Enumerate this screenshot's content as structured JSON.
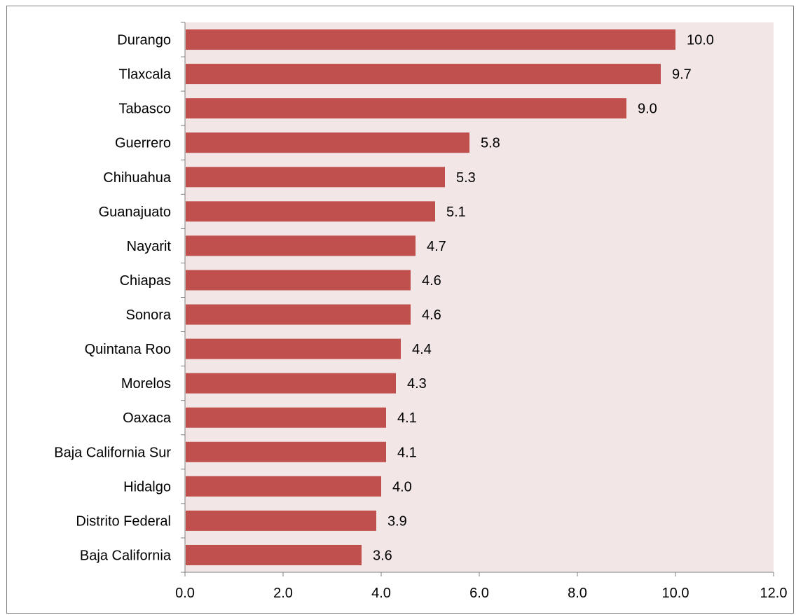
{
  "chart_data": {
    "type": "bar",
    "orientation": "horizontal",
    "title": "",
    "xlabel": "",
    "ylabel": "",
    "categories": [
      "Durango",
      "Tlaxcala",
      "Tabasco",
      "Guerrero",
      "Chihuahua",
      "Guanajuato",
      "Nayarit",
      "Chiapas",
      "Sonora",
      "Quintana Roo",
      "Morelos",
      "Oaxaca",
      "Baja California Sur",
      "Hidalgo",
      "Distrito Federal",
      "Baja California"
    ],
    "values": [
      10.0,
      9.7,
      9.0,
      5.8,
      5.3,
      5.1,
      4.7,
      4.6,
      4.6,
      4.4,
      4.3,
      4.1,
      4.1,
      4.0,
      3.9,
      3.6
    ],
    "value_labels": [
      "10.0",
      "9.7",
      "9.0",
      "5.8",
      "5.3",
      "5.1",
      "4.7",
      "4.6",
      "4.6",
      "4.4",
      "4.3",
      "4.1",
      "4.1",
      "4.0",
      "3.9",
      "3.6"
    ],
    "xlim": [
      0,
      12
    ],
    "xticks": [
      "0.0",
      "2.0",
      "4.0",
      "6.0",
      "8.0",
      "10.0",
      "12.0"
    ],
    "grid": false,
    "legend": "none",
    "colors": {
      "bar": "#c0504d",
      "plot_background": "#f2e6e6",
      "axis": "#808080"
    }
  }
}
